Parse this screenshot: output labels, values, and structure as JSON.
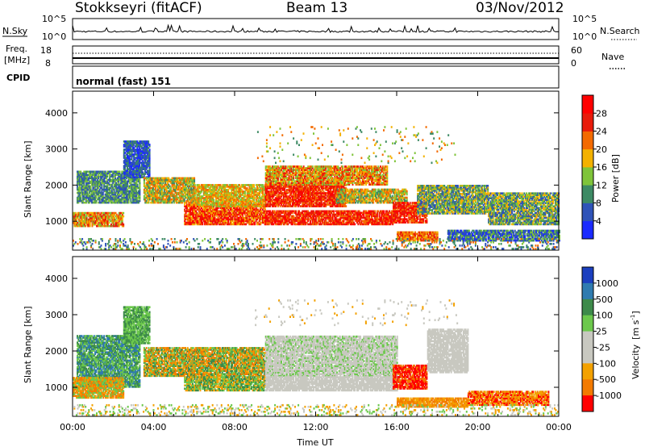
{
  "header": {
    "station": "Stokkseyri (fitACF)",
    "beam": "Beam 13",
    "date": "03/Nov/2012"
  },
  "strip_panels": {
    "nsky": {
      "label": "N.Sky",
      "ticks_left": [
        "10^5",
        "10^0"
      ],
      "ticks_right": [
        "10^5",
        "10^0"
      ],
      "right_label": "N.Search"
    },
    "freq": {
      "label_line1": "Freq.",
      "label_line2": "[MHz]",
      "ticks_left": [
        "18",
        "8"
      ],
      "ticks_right": [
        "60",
        "0"
      ],
      "right_label": "Nave"
    },
    "cpid": {
      "label": "CPID",
      "value": "normal (fast) 151"
    }
  },
  "chart_data": [
    {
      "type": "heatmap",
      "name": "power-panel",
      "x_ticks": [
        "00:00",
        "04:00",
        "08:00",
        "12:00",
        "16:00",
        "20:00",
        "00:00"
      ],
      "x_range_hours": [
        0,
        24
      ],
      "ylabel": "Slant Range [km]",
      "ylim": [
        200,
        4600
      ],
      "y_ticks": [
        1000,
        2000,
        3000,
        4000
      ],
      "colorbar": {
        "label": "Power [dB]",
        "ticks": [
          "4",
          "8",
          "12",
          "16",
          "20",
          "24",
          "28"
        ],
        "colors": [
          "#1a2aff",
          "#2f53b8",
          "#3d8a64",
          "#7fc43a",
          "#f3b100",
          "#f36a00",
          "#e81b0b",
          "#ff0000"
        ]
      },
      "series": [
        {
          "bands": [
            {
              "t0": 0.2,
              "t1": 3.3,
              "r0": 1500,
              "r1": 2400,
              "c": [
                1,
                2,
                3
              ]
            },
            {
              "t0": 0.0,
              "t1": 2.5,
              "r0": 850,
              "r1": 1250,
              "c": [
                5,
                6,
                4,
                3
              ]
            },
            {
              "t0": 2.5,
              "t1": 3.8,
              "r0": 2200,
              "r1": 3200,
              "c": [
                0,
                1,
                2
              ]
            },
            {
              "t0": 3.5,
              "t1": 6.0,
              "r0": 1500,
              "r1": 2200,
              "c": [
                3,
                4,
                5,
                2
              ]
            },
            {
              "t0": 5.5,
              "t1": 9.5,
              "r0": 900,
              "r1": 1450,
              "c": [
                6,
                7,
                5,
                4
              ]
            },
            {
              "t0": 6.0,
              "t1": 9.5,
              "r0": 1400,
              "r1": 2000,
              "c": [
                3,
                4,
                5
              ]
            },
            {
              "t0": 9.5,
              "t1": 13.5,
              "r0": 1400,
              "r1": 2000,
              "c": [
                6,
                7,
                5
              ]
            },
            {
              "t0": 9.5,
              "t1": 15.5,
              "r0": 2000,
              "r1": 2500,
              "c": [
                3,
                4,
                5,
                6
              ]
            },
            {
              "t0": 9.5,
              "t1": 15.8,
              "r0": 900,
              "r1": 1300,
              "c": [
                5,
                6,
                7
              ]
            },
            {
              "t0": 13.0,
              "t1": 16.5,
              "r0": 1500,
              "r1": 1900,
              "c": [
                3,
                4,
                5,
                2
              ]
            },
            {
              "t0": 15.8,
              "t1": 17.5,
              "r0": 950,
              "r1": 1500,
              "c": [
                6,
                7,
                5
              ]
            },
            {
              "t0": 16.0,
              "t1": 18.0,
              "r0": 450,
              "r1": 700,
              "c": [
                5,
                4,
                6
              ]
            },
            {
              "t0": 17.0,
              "t1": 20.5,
              "r0": 1200,
              "r1": 2000,
              "c": [
                1,
                2,
                3,
                4
              ]
            },
            {
              "t0": 18.5,
              "t1": 24.0,
              "r0": 450,
              "r1": 750,
              "c": [
                0,
                1,
                2,
                3
              ]
            },
            {
              "t0": 20.5,
              "t1": 24.0,
              "r0": 900,
              "r1": 1800,
              "c": [
                1,
                2,
                3,
                4
              ]
            },
            {
              "t0": 9.0,
              "t1": 19.0,
              "r0": 2600,
              "r1": 3600,
              "c": [
                2,
                3,
                4,
                5
              ],
              "d": 0.04
            },
            {
              "t0": 0.0,
              "t1": 24.0,
              "r0": 220,
              "r1": 500,
              "c": [
                1,
                2,
                3,
                5
              ],
              "d": 0.2
            }
          ]
        }
      ]
    },
    {
      "type": "heatmap",
      "name": "velocity-panel",
      "x_ticks": [
        "00:00",
        "04:00",
        "08:00",
        "12:00",
        "16:00",
        "20:00",
        "00:00"
      ],
      "x_range_hours": [
        0,
        24
      ],
      "xlabel": "Time UT",
      "ylabel": "Slant Range [km]",
      "ylim": [
        200,
        4600
      ],
      "y_ticks": [
        1000,
        2000,
        3000,
        4000
      ],
      "colorbar": {
        "label_main": "Velocity",
        "label_unit": "[m s",
        "label_sup": "-1",
        "label_close": "]",
        "ticks": [
          "1000",
          "500",
          "100",
          "25",
          "-25",
          "-100",
          "-500",
          "-1000"
        ],
        "colors": [
          "#1b3fbf",
          "#2f7bb0",
          "#3d8a4a",
          "#6cc84c",
          "#c8c8c0",
          "#c8c8c0",
          "#f3a100",
          "#f37a00",
          "#ff0000"
        ]
      },
      "series": [
        {
          "bands": [
            {
              "t0": 0.2,
              "t1": 3.3,
              "r0": 1000,
              "r1": 2400,
              "c": [
                3,
                2,
                1
              ]
            },
            {
              "t0": 0.0,
              "t1": 2.5,
              "r0": 700,
              "r1": 1250,
              "c": [
                3,
                7,
                6
              ]
            },
            {
              "t0": 2.5,
              "t1": 3.8,
              "r0": 2200,
              "r1": 3200,
              "c": [
                3,
                2
              ]
            },
            {
              "t0": 3.5,
              "t1": 9.5,
              "r0": 1300,
              "r1": 2100,
              "c": [
                3,
                2,
                6,
                7
              ]
            },
            {
              "t0": 5.5,
              "t1": 9.5,
              "r0": 900,
              "r1": 1300,
              "c": [
                3,
                6,
                2
              ]
            },
            {
              "t0": 9.5,
              "t1": 16.0,
              "r0": 1300,
              "r1": 2400,
              "c": [
                4,
                4,
                5,
                3
              ]
            },
            {
              "t0": 9.5,
              "t1": 16.0,
              "r0": 900,
              "r1": 1300,
              "c": [
                4,
                5,
                4
              ]
            },
            {
              "t0": 15.8,
              "t1": 17.5,
              "r0": 950,
              "r1": 1600,
              "c": [
                8,
                7,
                8
              ]
            },
            {
              "t0": 17.5,
              "t1": 19.5,
              "r0": 1400,
              "r1": 2600,
              "c": [
                4,
                5
              ]
            },
            {
              "t0": 16.0,
              "t1": 19.5,
              "r0": 450,
              "r1": 700,
              "c": [
                6,
                7
              ]
            },
            {
              "t0": 19.5,
              "t1": 23.5,
              "r0": 500,
              "r1": 900,
              "c": [
                7,
                6,
                8
              ]
            },
            {
              "t0": 9.0,
              "t1": 19.0,
              "r0": 2700,
              "r1": 3400,
              "c": [
                4,
                5,
                6
              ],
              "d": 0.04
            },
            {
              "t0": 0.0,
              "t1": 24.0,
              "r0": 220,
              "r1": 500,
              "c": [
                3,
                4,
                6
              ],
              "d": 0.2
            }
          ]
        }
      ]
    }
  ]
}
